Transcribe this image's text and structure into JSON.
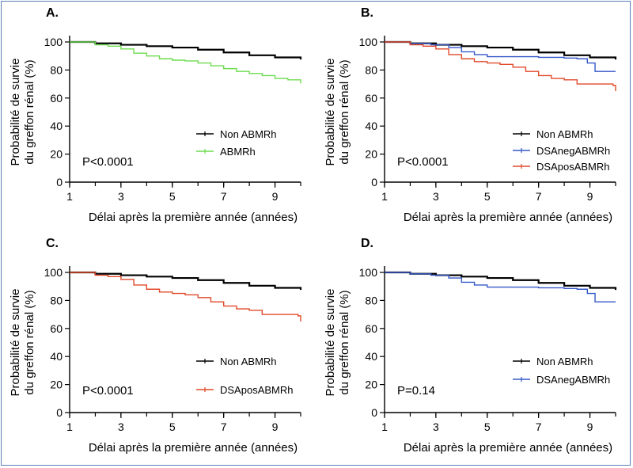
{
  "chart_data": [
    {
      "type": "line",
      "panel_label": "A.",
      "xlabel": "Délai après la première année (années)",
      "ylabel_line1": "Probabilité de survie",
      "ylabel_line2": "du greffon rénal (%)",
      "xlim": [
        1,
        10
      ],
      "ylim": [
        0,
        100
      ],
      "x_ticks": [
        1,
        3,
        5,
        7,
        9
      ],
      "y_ticks": [
        0,
        20,
        40,
        60,
        80,
        100
      ],
      "p_value": "P<0.0001",
      "series": [
        {
          "name": "Non ABMRh",
          "color": "#000000",
          "x": [
            1,
            2,
            3,
            4,
            5,
            6,
            7,
            8,
            9,
            10
          ],
          "y": [
            100,
            99,
            98,
            97,
            96,
            94.5,
            92.5,
            90.5,
            89,
            87.5
          ]
        },
        {
          "name": "ABMRh",
          "color": "#6ddc4f",
          "x": [
            1,
            2,
            2.5,
            3,
            3.5,
            4,
            4.5,
            5,
            5.5,
            6,
            6.5,
            7,
            7.5,
            8,
            8.5,
            9,
            9.5,
            10
          ],
          "y": [
            100,
            98,
            97,
            95,
            92,
            90,
            88,
            87,
            86.5,
            85,
            83,
            81,
            79,
            77.5,
            76,
            74,
            73,
            70.5
          ]
        }
      ]
    },
    {
      "type": "line",
      "panel_label": "B.",
      "xlabel": "Délai après la première année (années)",
      "ylabel_line1": "Probabilité de survie",
      "ylabel_line2": "du greffon rénal (%)",
      "xlim": [
        1,
        10
      ],
      "ylim": [
        0,
        100
      ],
      "x_ticks": [
        1,
        3,
        5,
        7,
        9
      ],
      "y_ticks": [
        0,
        20,
        40,
        60,
        80,
        100
      ],
      "p_value": "P<0.0001",
      "series": [
        {
          "name": "Non ABMRh",
          "color": "#000000",
          "x": [
            1,
            2,
            3,
            4,
            5,
            6,
            7,
            8,
            9,
            10
          ],
          "y": [
            100,
            99,
            98,
            97,
            96,
            94.5,
            92.5,
            90.5,
            89,
            87.5
          ]
        },
        {
          "name": "DSAnegABMRh",
          "color": "#3558c9",
          "x": [
            1,
            2,
            2.8,
            3.5,
            4,
            4.5,
            5,
            6,
            7,
            8,
            8.5,
            8.9,
            9.2,
            10
          ],
          "y": [
            100,
            99,
            98,
            96,
            93,
            91,
            89.5,
            89.5,
            89,
            88.5,
            88,
            85,
            79,
            79
          ]
        },
        {
          "name": "DSAposABMRh",
          "color": "#e04a2a",
          "x": [
            1,
            2,
            2.5,
            3,
            3.5,
            4,
            4.5,
            5,
            5.5,
            6,
            6.5,
            7,
            7.5,
            8,
            8.5,
            9,
            9.5,
            9.9,
            10
          ],
          "y": [
            100,
            98,
            97,
            95,
            91,
            88,
            86,
            85,
            84,
            82,
            79,
            76,
            74,
            73,
            70,
            70,
            70,
            69,
            65
          ]
        }
      ]
    },
    {
      "type": "line",
      "panel_label": "C.",
      "xlabel": "Délai après la première année (années)",
      "ylabel_line1": "Probabilité de survie",
      "ylabel_line2": "du greffon rénal (%)",
      "xlim": [
        1,
        10
      ],
      "ylim": [
        0,
        100
      ],
      "x_ticks": [
        1,
        3,
        5,
        7,
        9
      ],
      "y_ticks": [
        0,
        20,
        40,
        60,
        80,
        100
      ],
      "p_value": "P<0.0001",
      "series": [
        {
          "name": "Non ABMRh",
          "color": "#000000",
          "x": [
            1,
            2,
            3,
            4,
            5,
            6,
            7,
            8,
            9,
            10
          ],
          "y": [
            100,
            99,
            98,
            97,
            96,
            94.5,
            92.5,
            90.5,
            89,
            87.5
          ]
        },
        {
          "name": "DSAposABMRh",
          "color": "#e04a2a",
          "x": [
            1,
            2,
            2.5,
            3,
            3.5,
            4,
            4.5,
            5,
            5.5,
            6,
            6.5,
            7,
            7.5,
            8,
            8.5,
            9,
            9.5,
            9.9,
            10
          ],
          "y": [
            100,
            98,
            97,
            95,
            91,
            88,
            86,
            85,
            84,
            82,
            79,
            76,
            74,
            73,
            70,
            70,
            70,
            69,
            65
          ]
        }
      ]
    },
    {
      "type": "line",
      "panel_label": "D.",
      "xlabel": "Délai après la première année (années)",
      "ylabel_line1": "Probabilité de survie",
      "ylabel_line2": "du greffon rénal (%)",
      "xlim": [
        1,
        10
      ],
      "ylim": [
        0,
        100
      ],
      "x_ticks": [
        1,
        3,
        5,
        7,
        9
      ],
      "y_ticks": [
        0,
        20,
        40,
        60,
        80,
        100
      ],
      "p_value": "P=0.14",
      "series": [
        {
          "name": "Non ABMRh",
          "color": "#000000",
          "x": [
            1,
            2,
            3,
            4,
            5,
            6,
            7,
            8,
            9,
            10
          ],
          "y": [
            100,
            99,
            98,
            97,
            96,
            94.5,
            92.5,
            90.5,
            89,
            87.5
          ]
        },
        {
          "name": "DSAnegABMRh",
          "color": "#3558c9",
          "x": [
            1,
            2,
            2.8,
            3.5,
            4,
            4.5,
            5,
            6,
            7,
            8,
            8.5,
            8.9,
            9.2,
            10
          ],
          "y": [
            100,
            99,
            98,
            96,
            93,
            91,
            89.5,
            89.5,
            89,
            88.5,
            88,
            85,
            79,
            79
          ]
        }
      ]
    }
  ]
}
